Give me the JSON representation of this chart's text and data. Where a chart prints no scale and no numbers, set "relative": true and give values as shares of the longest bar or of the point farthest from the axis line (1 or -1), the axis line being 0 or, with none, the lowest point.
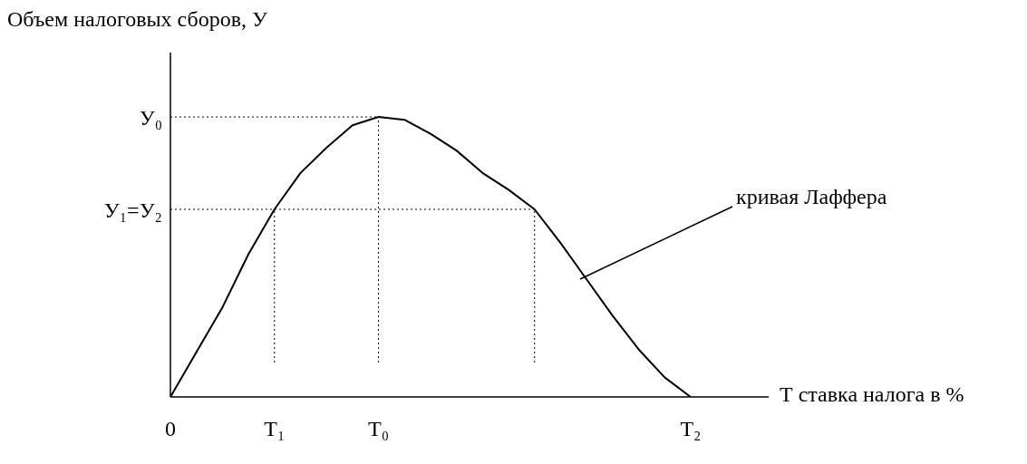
{
  "chart_data": {
    "type": "line",
    "relative": true,
    "ylabel": "Объем налоговых сборов, У",
    "xlabel": "Т ставка налога в %",
    "categories": [
      "0",
      null,
      null,
      null,
      "Т₁",
      null,
      null,
      null,
      "Т₀",
      null,
      null,
      null,
      null,
      null,
      null,
      null,
      null,
      null,
      null,
      null,
      "Т₂",
      null,
      null,
      null
    ],
    "series": [
      {
        "color": "#000000",
        "values": [
          0,
          0.16,
          0.32,
          0.51,
          0.67,
          0.8,
          0.89,
          0.97,
          1,
          0.99,
          0.94,
          0.88,
          0.8,
          0.74,
          0.67,
          0.55,
          0.42,
          0.29,
          0.17,
          0.07,
          0,
          null,
          null,
          null
        ]
      }
    ],
    "ref_lines": [
      {
        "axis": "y",
        "value": 1,
        "label": "У₀",
        "line_style": "dotted",
        "color": "#000000"
      },
      {
        "axis": "y",
        "value": 0.67,
        "label": "У₁=У₂",
        "line_style": "dotted",
        "color": "#000000"
      },
      {
        "axis": "x",
        "value": "Т₁",
        "line_style": "dotted",
        "color": "#000000"
      },
      {
        "axis": "x",
        "value": "Т₀",
        "line_style": "dotted",
        "color": "#000000"
      }
    ],
    "annotations": [
      "кривая Лаффера"
    ],
    "grid": false,
    "legend": false,
    "marker": "none",
    "line_style": "solid"
  }
}
